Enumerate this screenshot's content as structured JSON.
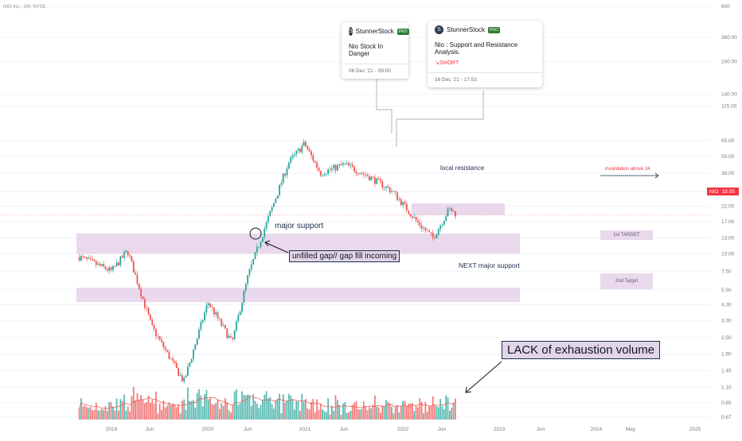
{
  "symbol_header": "NIO Inc., 1W, NYSE",
  "ideas": [
    {
      "author": "StunnerStock",
      "badge": "PRO",
      "title": "Nio Stock In Danger",
      "date": "06 Dec '21 - 09:00"
    },
    {
      "author": "StunnerStock",
      "badge": "PRO",
      "title": "Nio : Support and Resistance Analysis.",
      "direction": "↘SHORT",
      "date": "16 Dec '21 - 17:53"
    }
  ],
  "annotations": {
    "local_resistance": "local resistance",
    "major_support": "major support",
    "unfilled_gap": "unfilled gap// gap fill incoming",
    "next_major_support": "NEXT major support",
    "lack_volume": "LACK of exhaustion volume",
    "invalidation": "invalidation above 24",
    "target1": "1st TARGET",
    "target2": "2nd Target"
  },
  "price_tag": {
    "symbol": "NIO",
    "value": "19.05",
    "color": "#f23645"
  },
  "colors": {
    "up": "#26a69a",
    "down": "#ef5350",
    "zone": "#e1c8e6",
    "ma": "#ef5350"
  },
  "chart_data": {
    "type": "candlestick",
    "y_scale": "log",
    "ylim": [
      0.67,
      600
    ],
    "y_ticks": [
      "600",
      "360.00",
      "240.00",
      "140.00",
      "115.00",
      "65.00",
      "50.00",
      "38.00",
      "28.00",
      "22.00",
      "17.00",
      "13.00",
      "10.00",
      "7.50",
      "5.50",
      "4.30",
      "3.30",
      "2.50",
      "1.90",
      "1.45",
      "1.10",
      "0.85",
      "0.67"
    ],
    "x_ticks": [
      "2019",
      "Jun",
      "2020",
      "Jun",
      "2021",
      "Jun",
      "2022",
      "Jun",
      "2023",
      "Jun",
      "2024",
      "May",
      "2025"
    ],
    "series_close_approx": [
      {
        "date": "2018-09",
        "value": 9.5
      },
      {
        "date": "2019-01",
        "value": 7.5
      },
      {
        "date": "2019-03",
        "value": 10.5
      },
      {
        "date": "2019-06",
        "value": 3.0
      },
      {
        "date": "2019-10",
        "value": 1.2
      },
      {
        "date": "2020-01",
        "value": 4.5
      },
      {
        "date": "2020-04",
        "value": 2.3
      },
      {
        "date": "2020-06",
        "value": 7.0
      },
      {
        "date": "2020-08",
        "value": 15.0
      },
      {
        "date": "2020-11",
        "value": 45.0
      },
      {
        "date": "2021-01",
        "value": 62.0
      },
      {
        "date": "2021-03",
        "value": 38.0
      },
      {
        "date": "2021-06",
        "value": 44.0
      },
      {
        "date": "2021-09",
        "value": 36.0
      },
      {
        "date": "2021-12",
        "value": 28.0
      },
      {
        "date": "2022-03",
        "value": 17.0
      },
      {
        "date": "2022-05",
        "value": 13.0
      },
      {
        "date": "2022-07",
        "value": 21.0
      },
      {
        "date": "2022-08",
        "value": 19.05
      }
    ],
    "zones": [
      {
        "name": "local resistance",
        "low": 19.0,
        "high": 23.0
      },
      {
        "name": "major support",
        "low": 10.0,
        "high": 14.0
      },
      {
        "name": "NEXT major support",
        "low": 4.5,
        "high": 5.7
      }
    ]
  }
}
